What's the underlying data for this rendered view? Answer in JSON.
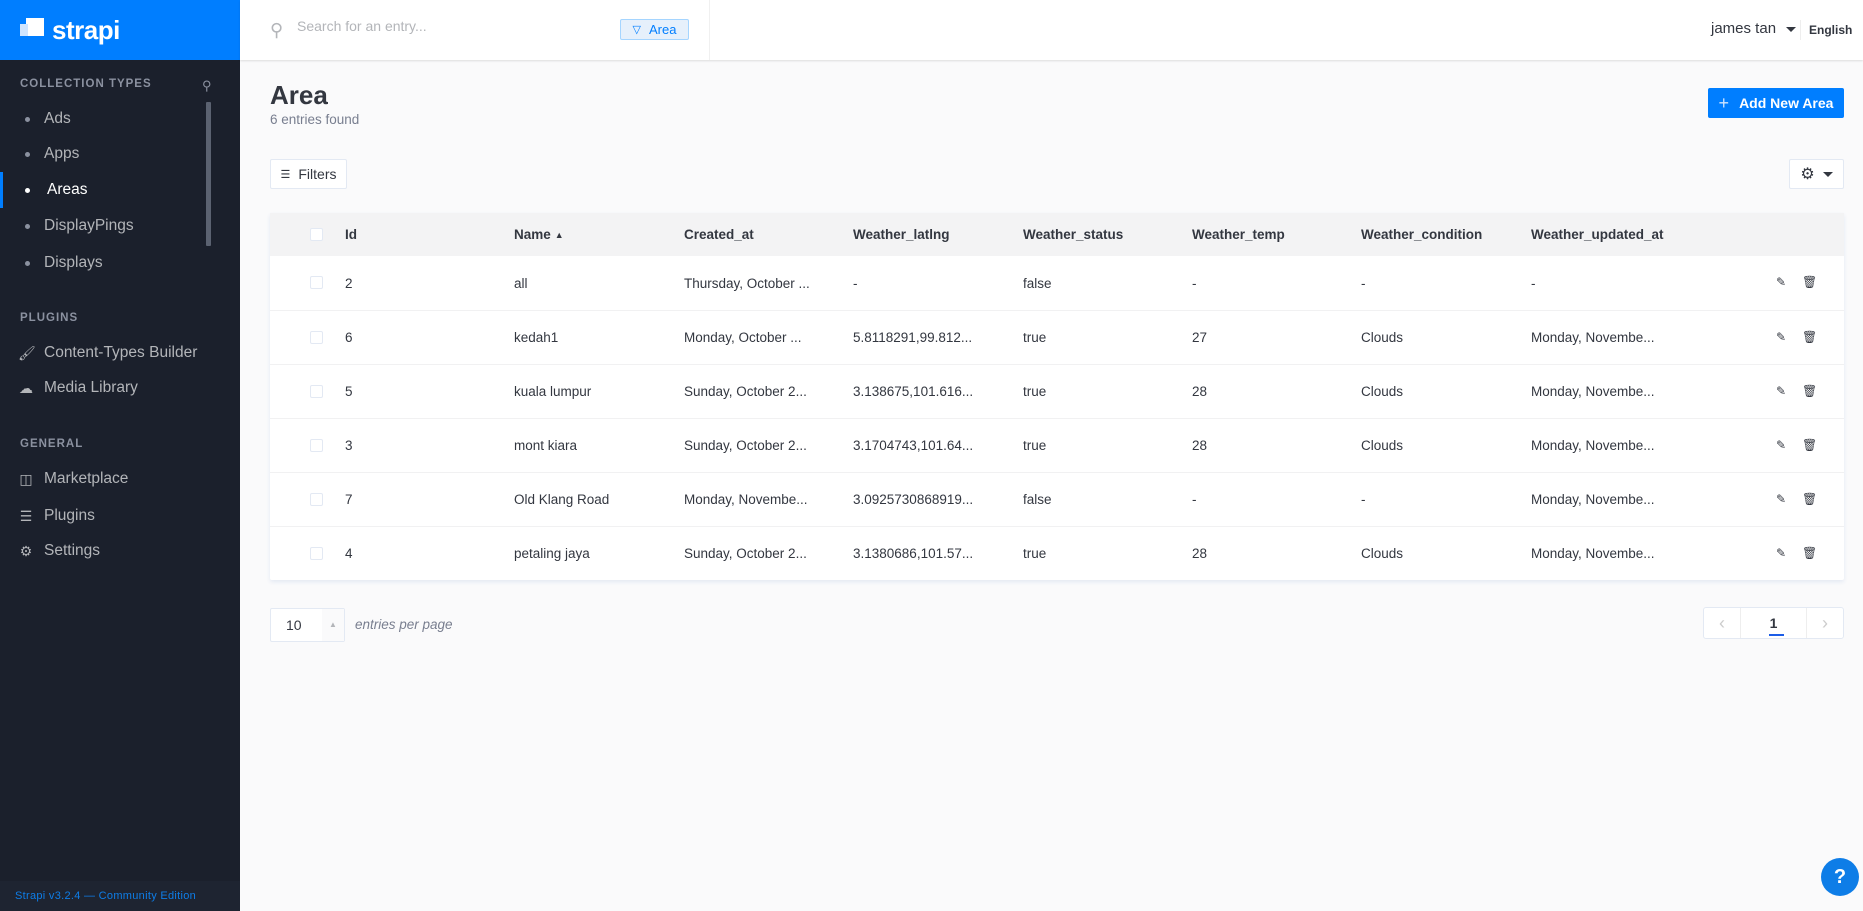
{
  "brand": {
    "name": "strapi",
    "color": "#007eff"
  },
  "sidebar": {
    "collection_label": "COLLECTION TYPES",
    "collection_items": [
      {
        "label": "Ads"
      },
      {
        "label": "Apps"
      },
      {
        "label": "Areas",
        "active": true
      },
      {
        "label": "DisplayPings"
      },
      {
        "label": "Displays"
      }
    ],
    "plugins_label": "PLUGINS",
    "plugin_items": [
      {
        "label": "Content-Types Builder",
        "icon": "paint-brush-icon"
      },
      {
        "label": "Media Library",
        "icon": "cloud-upload-icon"
      }
    ],
    "general_label": "GENERAL",
    "general_items": [
      {
        "label": "Marketplace",
        "icon": "shopping-basket-icon"
      },
      {
        "label": "Plugins",
        "icon": "list-icon"
      },
      {
        "label": "Settings",
        "icon": "gear-icon"
      }
    ],
    "footer": "Strapi v3.2.4 — Community Edition"
  },
  "header": {
    "search_placeholder": "Search for an entry...",
    "filter_tag": "Area",
    "user": "james tan",
    "language": "English"
  },
  "page": {
    "title": "Area",
    "subtitle": "6 entries found",
    "add_button": "Add New Area",
    "filters_button": "Filters"
  },
  "table": {
    "columns": [
      "Id",
      "Name",
      "Created_at",
      "Weather_latlng",
      "Weather_status",
      "Weather_temp",
      "Weather_condition",
      "Weather_updated_at"
    ],
    "sorted_column": "Name",
    "rows": [
      [
        "2",
        "all",
        "Thursday, October ...",
        "-",
        "false",
        "-",
        "-",
        "-"
      ],
      [
        "6",
        "kedah1",
        "Monday, October ...",
        "5.8118291,99.812...",
        "true",
        "27",
        "Clouds",
        "Monday, Novembe..."
      ],
      [
        "5",
        "kuala lumpur",
        "Sunday, October 2...",
        "3.138675,101.616...",
        "true",
        "28",
        "Clouds",
        "Monday, Novembe..."
      ],
      [
        "3",
        "mont kiara",
        "Sunday, October 2...",
        "3.1704743,101.64...",
        "true",
        "28",
        "Clouds",
        "Monday, Novembe..."
      ],
      [
        "7",
        "Old Klang Road",
        "Monday, Novembe...",
        "3.0925730868919...",
        "false",
        "-",
        "-",
        "Monday, Novembe..."
      ],
      [
        "4",
        "petaling jaya",
        "Sunday, October 2...",
        "3.1380686,101.57...",
        "true",
        "28",
        "Clouds",
        "Monday, Novembe..."
      ]
    ]
  },
  "pagination": {
    "per_page": "10",
    "per_page_label": "entries per page",
    "current_page": "1"
  },
  "help": "?"
}
